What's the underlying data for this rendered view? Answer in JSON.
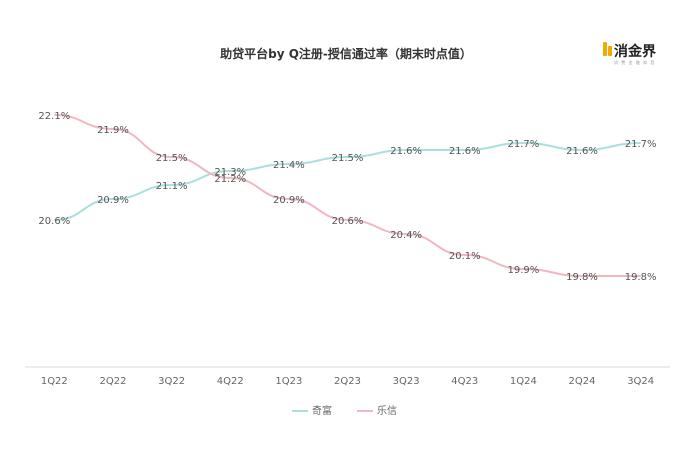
{
  "chart_data": {
    "type": "line",
    "title": "助贷平台by Q注册-授信通过率（期末时点值）",
    "categories": [
      "1Q22",
      "2Q22",
      "3Q22",
      "4Q22",
      "1Q23",
      "2Q23",
      "3Q23",
      "4Q23",
      "1Q24",
      "2Q24",
      "3Q24"
    ],
    "series": [
      {
        "name": "奇富",
        "color": "#a8e0dd",
        "values": [
          20.6,
          20.9,
          21.1,
          21.3,
          21.4,
          21.5,
          21.6,
          21.6,
          21.7,
          21.6,
          21.7
        ],
        "labels": [
          "20.6%",
          "20.9%",
          "21.1%",
          "21.3%",
          "21.4%",
          "21.5%",
          "21.6%",
          "21.6%",
          "21.7%",
          "21.6%",
          "21.7%"
        ]
      },
      {
        "name": "乐信",
        "color": "#f0b8c0",
        "values": [
          22.1,
          21.9,
          21.5,
          21.2,
          20.9,
          20.6,
          20.4,
          20.1,
          19.9,
          19.8,
          19.8
        ],
        "labels": [
          "22.1%",
          "21.9%",
          "21.5%",
          "21.2%",
          "20.9%",
          "20.6%",
          "20.4%",
          "20.1%",
          "19.9%",
          "19.8%",
          "19.8%"
        ]
      }
    ],
    "ylim": [
      18.5,
      22.6
    ],
    "grid": false,
    "legend_position": "bottom-center",
    "axis_color": "#d9d9d9"
  },
  "logo": {
    "text": "消金界",
    "sub": "消 费 金 融 知 音",
    "accent": "#f2a900"
  }
}
